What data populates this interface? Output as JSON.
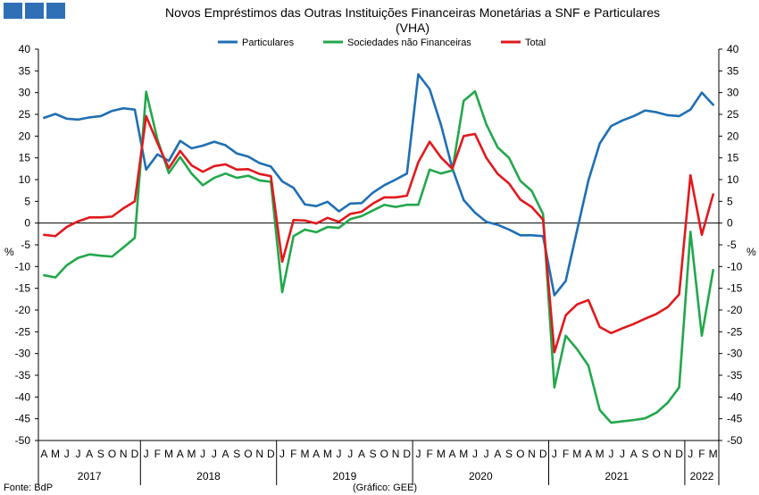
{
  "chart_data": {
    "type": "line",
    "title_line1": "Novos Empréstimos das Outras Instituições Financeiras Monetárias a SNF e Particulares",
    "title_line2": "(VHA)",
    "ylabel_left": "%",
    "ylabel_right": "%",
    "ylim": [
      -50,
      40
    ],
    "ytick_step": 5,
    "months": [
      "A",
      "M",
      "J",
      "J",
      "A",
      "S",
      "O",
      "N",
      "D",
      "J",
      "F",
      "M",
      "A",
      "M",
      "J",
      "J",
      "A",
      "S",
      "O",
      "N",
      "D",
      "J",
      "F",
      "M",
      "A",
      "M",
      "J",
      "J",
      "A",
      "S",
      "O",
      "N",
      "D",
      "J",
      "F",
      "M",
      "A",
      "M",
      "J",
      "J",
      "A",
      "S",
      "O",
      "N",
      "D",
      "J",
      "F",
      "M",
      "A",
      "M",
      "J",
      "J",
      "A",
      "S",
      "O",
      "N",
      "D",
      "J",
      "F",
      "M"
    ],
    "years": [
      {
        "label": "2017",
        "start": 0,
        "count": 9
      },
      {
        "label": "2018",
        "start": 9,
        "count": 12
      },
      {
        "label": "2019",
        "start": 21,
        "count": 12
      },
      {
        "label": "2020",
        "start": 33,
        "count": 12
      },
      {
        "label": "2021",
        "start": 45,
        "count": 12
      },
      {
        "label": "2022",
        "start": 57,
        "count": 3
      }
    ],
    "series": [
      {
        "name": "Particulares",
        "color": "#1F6FB4",
        "values": [
          24.2,
          25.1,
          24,
          23.8,
          24.3,
          24.6,
          25.8,
          26.4,
          26.1,
          12.3,
          15.8,
          14.3,
          18.9,
          17.2,
          17.8,
          18.7,
          17.9,
          16,
          15.3,
          13.8,
          13,
          9.6,
          8.1,
          4.3,
          3.9,
          4.9,
          2.7,
          4.5,
          4.6,
          7,
          8.7,
          10,
          11.4,
          34.2,
          30.8,
          22.6,
          12.6,
          5.3,
          2.4,
          0.3,
          -0.4,
          -1.5,
          -2.8,
          -2.8,
          -3,
          -16.6,
          -13.3,
          -1.7,
          9.8,
          18.3,
          22.3,
          23.6,
          24.6,
          25.9,
          25.5,
          24.8,
          24.6,
          26.1,
          30,
          27.2
        ]
      },
      {
        "name": "Sociedades não Financeiras",
        "color": "#22A74B",
        "values": [
          -12,
          -12.5,
          -9.7,
          -8,
          -7.2,
          -7.5,
          -7.7,
          -5.6,
          -3.4,
          30.2,
          19.2,
          11.5,
          15.2,
          11.4,
          8.7,
          10.4,
          11.4,
          10.4,
          10.9,
          9.8,
          9.5,
          -15.9,
          -3,
          -1.5,
          -2.1,
          -0.9,
          -1.1,
          0.9,
          1.6,
          2.9,
          4.2,
          3.7,
          4.2,
          4.2,
          12.3,
          11.4,
          12.1,
          28.1,
          30.3,
          22.7,
          17.4,
          15,
          9.7,
          7.4,
          2.1,
          -37.8,
          -25.9,
          -29,
          -32.8,
          -43,
          -45.9,
          -45.6,
          -45.3,
          -44.9,
          -43.6,
          -41.3,
          -37.8,
          -2,
          -25.9,
          -10.8
        ]
      },
      {
        "name": "Total",
        "color": "#E1191D",
        "values": [
          -2.7,
          -3,
          -0.9,
          0.4,
          1.3,
          1.3,
          1.5,
          3.4,
          5,
          24.6,
          18.4,
          12.6,
          16.6,
          13.3,
          11.8,
          13.1,
          13.5,
          12.3,
          12.4,
          11.3,
          10.8,
          -8.9,
          0.7,
          0.6,
          -0.1,
          1.2,
          0.3,
          2.1,
          2.6,
          4.5,
          5.9,
          5.9,
          6.3,
          14,
          18.7,
          15.1,
          12.5,
          20,
          20.5,
          15,
          11.3,
          9.1,
          5.4,
          3.7,
          0.8,
          -29.7,
          -21.2,
          -18.7,
          -17.7,
          -23.9,
          -25.3,
          -24.2,
          -23.2,
          -22,
          -20.9,
          -19.3,
          -16.4,
          11,
          -2.7,
          6.6
        ]
      }
    ],
    "legend_position": "top-center",
    "grid": false
  },
  "header": {
    "squares": 3,
    "square_color": "#2F6FB6"
  },
  "footer": {
    "source": "Fonte: BdP",
    "credit": "(Gráfico: GEE)"
  }
}
